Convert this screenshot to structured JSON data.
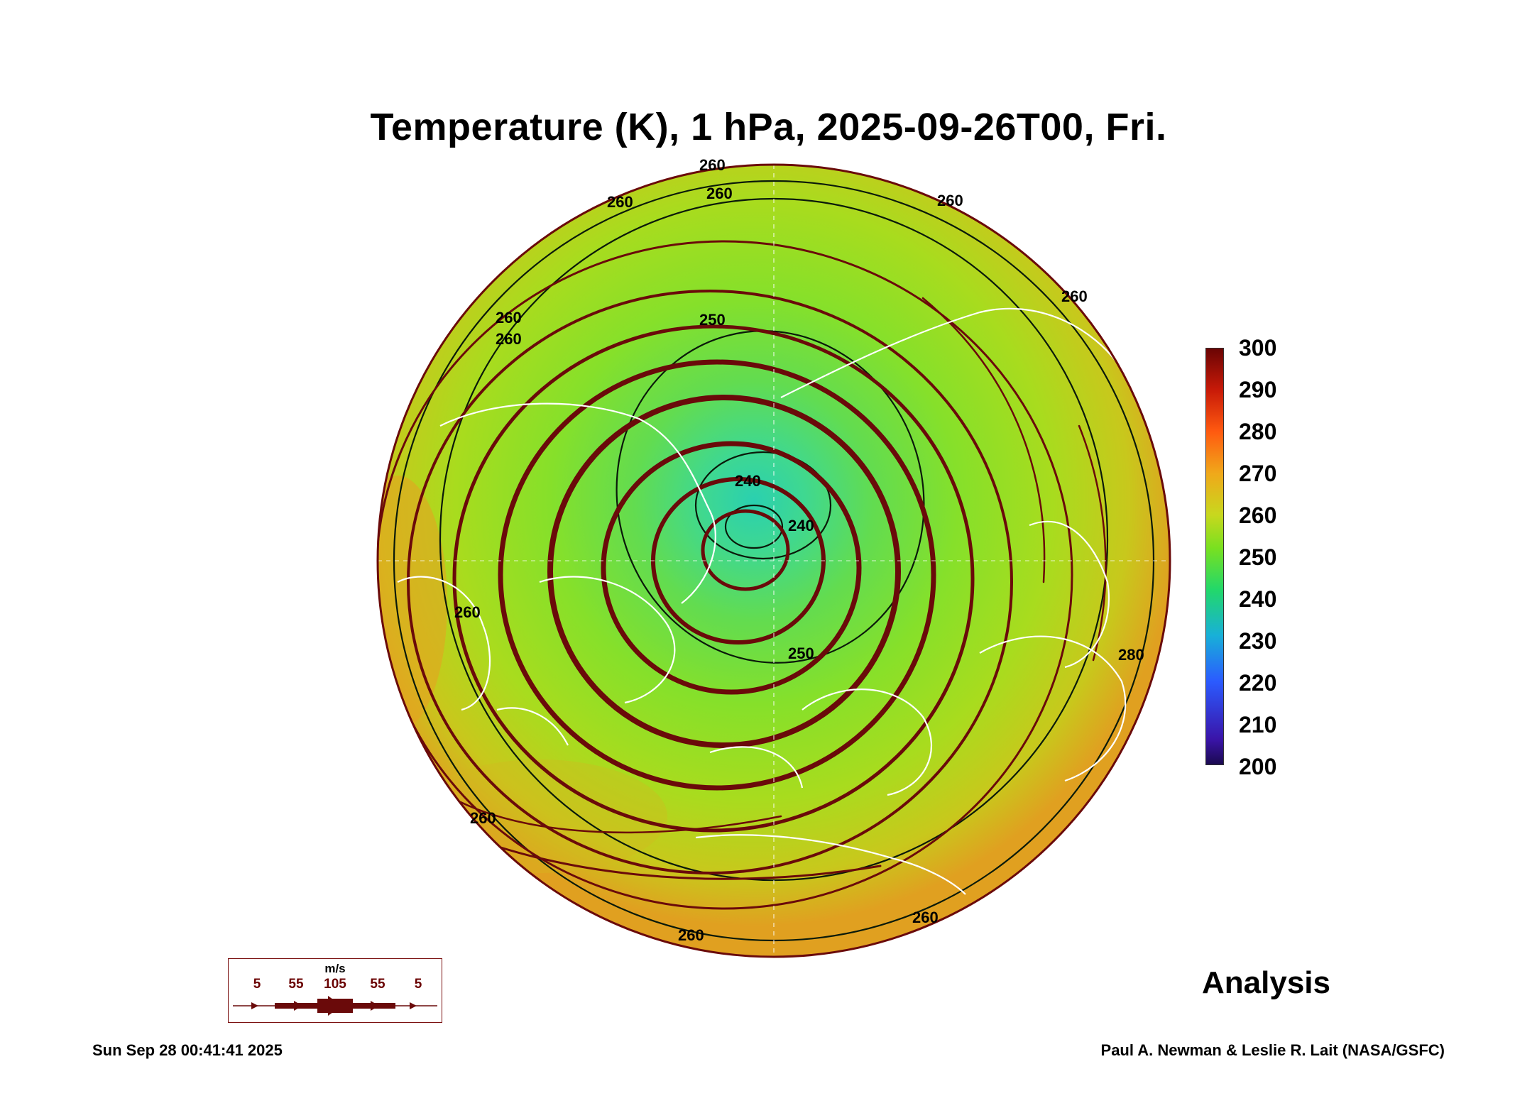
{
  "title": "Temperature (K), 1 hPa, 2025-09-26T00, Fri.",
  "colorbar": {
    "ticks": [
      "300",
      "290",
      "280",
      "270",
      "260",
      "250",
      "240",
      "230",
      "220",
      "210",
      "200"
    ],
    "min": 200,
    "max": 300,
    "colors": [
      "#1b0a50",
      "#2b5bff",
      "#18b0d8",
      "#22d86a",
      "#79e020",
      "#c8d81e",
      "#f0a81a",
      "#ff5a10",
      "#c81a08",
      "#6a0404"
    ]
  },
  "contour_labels": [
    "260",
    "260",
    "260",
    "260",
    "260",
    "260",
    "260",
    "250",
    "240",
    "240",
    "260",
    "250",
    "280",
    "260",
    "260",
    "260"
  ],
  "wind_legend": {
    "unit": "m/s",
    "labels": [
      "5",
      "55",
      "105",
      "55",
      "5"
    ]
  },
  "analysis_label": "Analysis",
  "footer": {
    "timestamp": "Sun Sep 28 00:41:41 2025",
    "credit": "Paul A. Newman & Leslie R. Lait (NASA/GSFC)"
  },
  "colors": {
    "coastline": "#ffffff",
    "contour": "#0a1a0a",
    "streamline": "#6a0a0a",
    "cold_core": "#2ad0b0",
    "mid_field": "#86e02a",
    "warm_edge": "#e0a020"
  }
}
